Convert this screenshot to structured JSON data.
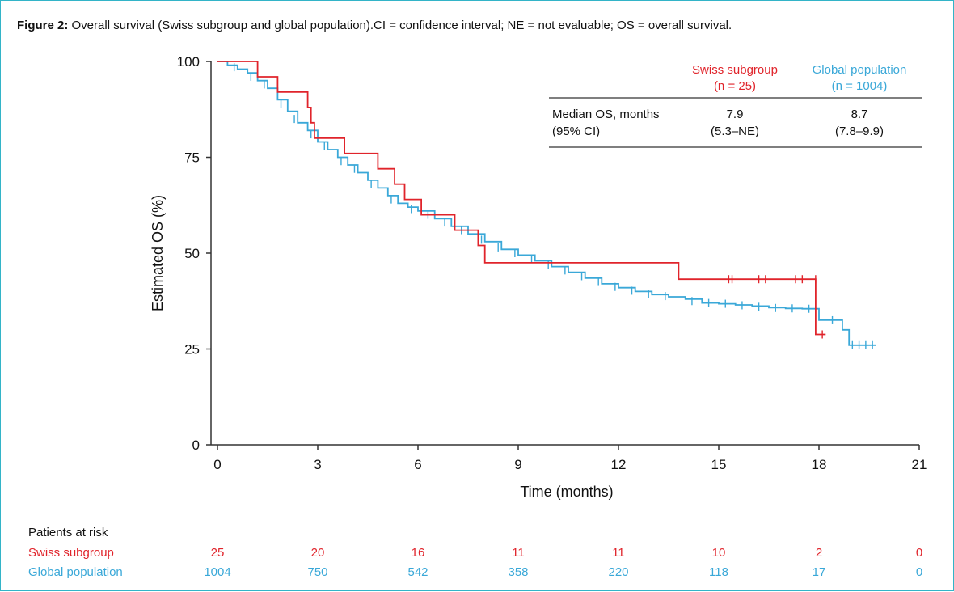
{
  "figure": {
    "caption_label": "Figure 2:",
    "caption_text": " Overall survival (Swiss subgroup and global population).CI = confidence interval; NE = not evaluable; OS = overall survival."
  },
  "colors": {
    "swiss": "#e0242b",
    "global": "#3aa8d8",
    "axis": "#333333",
    "text": "#111111"
  },
  "chart_data": {
    "type": "line",
    "subtype": "kaplan-meier",
    "xlabel": "Time (months)",
    "ylabel": "Estimated OS (%)",
    "xlim": [
      0,
      21
    ],
    "ylim": [
      0,
      100
    ],
    "xticks": [
      0,
      3,
      6,
      9,
      12,
      15,
      18,
      21
    ],
    "yticks": [
      0,
      25,
      50,
      75,
      100
    ],
    "series": [
      {
        "name": "Swiss subgroup",
        "color": "#e0242b",
        "steps": [
          [
            0,
            100
          ],
          [
            1.2,
            100
          ],
          [
            1.2,
            96
          ],
          [
            1.8,
            96
          ],
          [
            1.8,
            92
          ],
          [
            2.7,
            92
          ],
          [
            2.7,
            88
          ],
          [
            2.8,
            88
          ],
          [
            2.8,
            84
          ],
          [
            2.9,
            84
          ],
          [
            2.9,
            80
          ],
          [
            3.8,
            80
          ],
          [
            3.8,
            76
          ],
          [
            4.8,
            76
          ],
          [
            4.8,
            72
          ],
          [
            5.3,
            72
          ],
          [
            5.3,
            68
          ],
          [
            5.6,
            68
          ],
          [
            5.6,
            64
          ],
          [
            6.1,
            64
          ],
          [
            6.1,
            60
          ],
          [
            7.1,
            60
          ],
          [
            7.1,
            56
          ],
          [
            7.8,
            56
          ],
          [
            7.8,
            52
          ],
          [
            8.0,
            52
          ],
          [
            8.0,
            47.5
          ],
          [
            13.8,
            47.5
          ],
          [
            13.8,
            43.2
          ],
          [
            17.9,
            43.2
          ],
          [
            17.9,
            28.8
          ],
          [
            18.2,
            28.8
          ]
        ],
        "censors": [
          [
            15.3,
            43.2
          ],
          [
            15.4,
            43.2
          ],
          [
            16.2,
            43.2
          ],
          [
            16.4,
            43.2
          ],
          [
            17.3,
            43.2
          ],
          [
            17.5,
            43.2
          ],
          [
            17.9,
            43.2
          ],
          [
            18.1,
            28.8
          ]
        ]
      },
      {
        "name": "Global population",
        "color": "#3aa8d8",
        "steps": [
          [
            0,
            100
          ],
          [
            0.3,
            99
          ],
          [
            0.6,
            98
          ],
          [
            0.9,
            97
          ],
          [
            1.2,
            95
          ],
          [
            1.5,
            93
          ],
          [
            1.8,
            90
          ],
          [
            2.1,
            87
          ],
          [
            2.4,
            84
          ],
          [
            2.7,
            82
          ],
          [
            3.0,
            79
          ],
          [
            3.3,
            77
          ],
          [
            3.6,
            75
          ],
          [
            3.9,
            73
          ],
          [
            4.2,
            71
          ],
          [
            4.5,
            69
          ],
          [
            4.8,
            67
          ],
          [
            5.1,
            65
          ],
          [
            5.4,
            63
          ],
          [
            5.7,
            62
          ],
          [
            6.0,
            61
          ],
          [
            6.5,
            59
          ],
          [
            7.0,
            57
          ],
          [
            7.5,
            55
          ],
          [
            8.0,
            53
          ],
          [
            8.5,
            51
          ],
          [
            9.0,
            49.5
          ],
          [
            9.5,
            48
          ],
          [
            10.0,
            46.5
          ],
          [
            10.5,
            45
          ],
          [
            11.0,
            43.5
          ],
          [
            11.5,
            42
          ],
          [
            12.0,
            41
          ],
          [
            12.5,
            40
          ],
          [
            13.0,
            39.2
          ],
          [
            13.5,
            38.6
          ],
          [
            14.0,
            38
          ],
          [
            14.5,
            37
          ],
          [
            15.0,
            36.8
          ],
          [
            15.5,
            36.5
          ],
          [
            16.0,
            36.2
          ],
          [
            16.5,
            35.8
          ],
          [
            17.0,
            35.6
          ],
          [
            17.5,
            35.5
          ],
          [
            17.9,
            35.5
          ],
          [
            18.0,
            32.5
          ],
          [
            18.6,
            32.5
          ],
          [
            18.7,
            30
          ],
          [
            18.9,
            26
          ],
          [
            19.7,
            26
          ]
        ],
        "censors": [
          [
            0.5,
            98.5
          ],
          [
            1.0,
            96
          ],
          [
            1.4,
            94
          ],
          [
            1.9,
            89
          ],
          [
            2.3,
            85
          ],
          [
            2.8,
            81
          ],
          [
            3.2,
            78
          ],
          [
            3.7,
            74
          ],
          [
            4.1,
            72
          ],
          [
            4.6,
            68
          ],
          [
            5.2,
            64
          ],
          [
            5.8,
            61.5
          ],
          [
            6.3,
            60
          ],
          [
            6.8,
            58
          ],
          [
            7.3,
            56
          ],
          [
            7.9,
            53.5
          ],
          [
            8.4,
            51.5
          ],
          [
            8.9,
            50
          ],
          [
            9.4,
            48.5
          ],
          [
            9.9,
            47
          ],
          [
            10.4,
            45.5
          ],
          [
            10.9,
            44
          ],
          [
            11.4,
            42.5
          ],
          [
            11.9,
            41.2
          ],
          [
            12.4,
            40.2
          ],
          [
            12.9,
            39.4
          ],
          [
            13.4,
            38.8
          ],
          [
            14.2,
            37.5
          ],
          [
            14.7,
            37
          ],
          [
            15.2,
            36.8
          ],
          [
            15.7,
            36.4
          ],
          [
            16.2,
            36
          ],
          [
            16.7,
            35.7
          ],
          [
            17.2,
            35.6
          ],
          [
            17.7,
            35.5
          ],
          [
            18.4,
            32.5
          ],
          [
            19.0,
            26
          ],
          [
            19.2,
            26
          ],
          [
            19.4,
            26
          ],
          [
            19.6,
            26
          ]
        ]
      }
    ],
    "legend_table": {
      "col_headers": [
        {
          "name": "Swiss subgroup",
          "n": "(n = 25)"
        },
        {
          "name": "Global population",
          "n": "(n = 1004)"
        }
      ],
      "row_label_1": "Median OS, months",
      "row_label_2": "(95% CI)",
      "values": [
        {
          "median": "7.9",
          "ci": "(5.3–NE)"
        },
        {
          "median": "8.7",
          "ci": "(7.8–9.9)"
        }
      ]
    },
    "at_risk": {
      "title": "Patients at risk",
      "times": [
        0,
        3,
        6,
        9,
        12,
        15,
        18,
        21
      ],
      "rows": [
        {
          "label": "Swiss subgroup",
          "values": [
            "25",
            "20",
            "16",
            "11",
            "11",
            "10",
            "2",
            "0"
          ]
        },
        {
          "label": "Global population",
          "values": [
            "1004",
            "750",
            "542",
            "358",
            "220",
            "118",
            "17",
            "0"
          ]
        }
      ]
    }
  }
}
